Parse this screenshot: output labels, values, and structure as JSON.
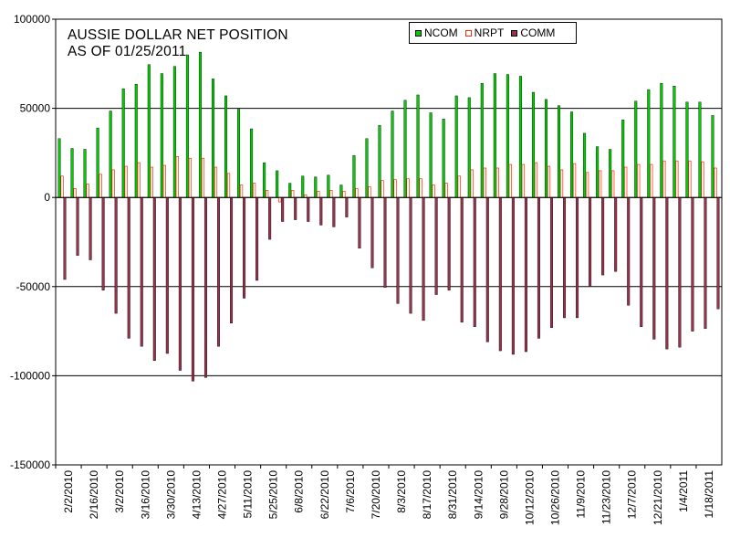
{
  "chart_data": {
    "type": "bar",
    "title_lines": [
      "AUSSIE DOLLAR NET POSITION",
      "AS OF 01/25/2011"
    ],
    "ylim": [
      -150000,
      100000
    ],
    "y_ticks": [
      100000,
      50000,
      0,
      -50000,
      -100000,
      -150000
    ],
    "y_tick_labels": [
      "100000",
      "50000",
      "0",
      "-50000",
      "-100000",
      "-150000"
    ],
    "grid": "horizontal",
    "legend_position": "top-right",
    "x_tick_labels": [
      "2/2/2010",
      "2/16/2010",
      "3/2/2010",
      "3/16/2010",
      "3/30/2010",
      "4/13/2010",
      "4/27/2010",
      "5/11/2010",
      "5/25/2010",
      "6/8/2010",
      "6/22/2010",
      "7/6/2010",
      "7/20/2010",
      "8/3/2010",
      "8/17/2010",
      "8/31/2010",
      "9/14/2010",
      "9/28/2010",
      "10/12/2010",
      "10/26/2010",
      "11/9/2010",
      "11/23/2010",
      "12/7/2010",
      "12/21/2010",
      "1/4/2011",
      "1/18/2011"
    ],
    "series": [
      {
        "name": "NCOM",
        "color": "#00cc00",
        "values": [
          33000,
          27500,
          27000,
          39000,
          48500,
          61000,
          63500,
          74500,
          69500,
          73500,
          80000,
          81500,
          66500,
          57000,
          49500,
          38500,
          19500,
          15000,
          8000,
          12000,
          11500,
          12500,
          7000,
          23500,
          33000,
          40500,
          48500,
          54500,
          57500,
          47500,
          44000,
          57000,
          56000,
          64000,
          69500,
          69000,
          68000,
          59000,
          55000,
          51500,
          48000,
          36000,
          28500,
          27000,
          43500,
          54000,
          60500,
          64000,
          62500,
          53500,
          53500,
          46000
        ]
      },
      {
        "name": "NRPT",
        "color": "#ff2a00",
        "values": [
          12000,
          5000,
          7500,
          13000,
          15500,
          17500,
          19500,
          17000,
          18000,
          23000,
          22000,
          22000,
          17000,
          13500,
          7000,
          8000,
          4000,
          -2500,
          4000,
          1500,
          3500,
          4000,
          3500,
          5000,
          6000,
          9500,
          10000,
          10500,
          10500,
          7000,
          8000,
          12000,
          15500,
          16500,
          16500,
          18500,
          18500,
          19500,
          17500,
          15500,
          19000,
          14000,
          15000,
          15000,
          17000,
          18500,
          18500,
          20500,
          20500,
          20500,
          20000,
          16500
        ]
      },
      {
        "name": "COMM",
        "color": "#99334d",
        "values": [
          -46000,
          -32500,
          -35000,
          -52000,
          -65000,
          -79000,
          -83500,
          -91500,
          -87500,
          -97000,
          -103000,
          -101000,
          -83500,
          -70500,
          -56500,
          -46500,
          -23500,
          -13500,
          -12500,
          -13500,
          -15500,
          -16500,
          -11000,
          -28500,
          -39500,
          -50500,
          -59500,
          -65000,
          -69000,
          -54500,
          -52000,
          -70000,
          -72500,
          -81000,
          -86000,
          -88000,
          -86500,
          -79000,
          -73000,
          -67500,
          -67500,
          -50000,
          -43500,
          -41500,
          -60500,
          -72500,
          -79500,
          -85000,
          -84000,
          -75000,
          -73500,
          -62500
        ]
      }
    ]
  }
}
